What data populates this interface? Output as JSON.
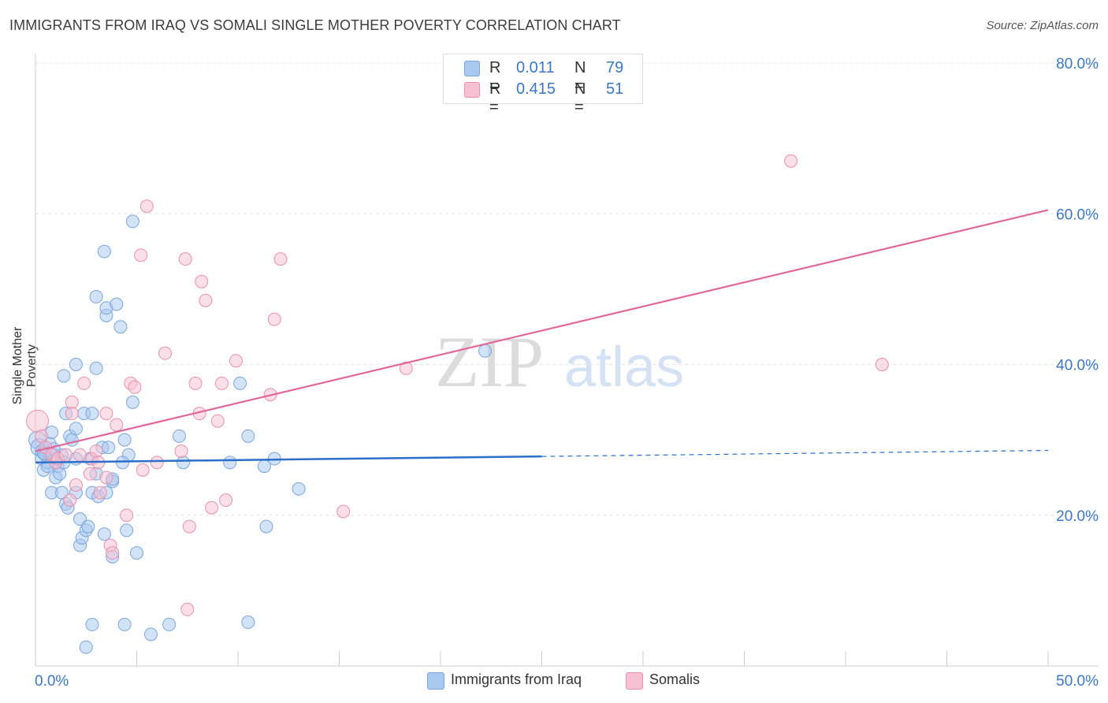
{
  "header": {
    "title": "IMMIGRANTS FROM IRAQ VS SOMALI SINGLE MOTHER POVERTY CORRELATION CHART",
    "source": "Source: ZipAtlas.com"
  },
  "watermark": {
    "zip": "ZIP",
    "atlas": "atlas"
  },
  "legend": {
    "rows": [
      {
        "r_label": "R =",
        "r_value": "0.011",
        "n_label": "N =",
        "n_value": "79",
        "color": "#a8c8f0",
        "border": "#7aa6dc"
      },
      {
        "r_label": "R =",
        "r_value": "0.415",
        "n_label": "N =",
        "n_value": "51",
        "color": "#f7c0d2",
        "border": "#e890ae"
      }
    ]
  },
  "bottom_legend": [
    {
      "label": "Immigrants from Iraq",
      "color": "#a8c8f0",
      "border": "#7aa6dc"
    },
    {
      "label": "Somalis",
      "color": "#f7c0d2",
      "border": "#e890ae"
    }
  ],
  "chart_data": {
    "type": "scatter",
    "title": "IMMIGRANTS FROM IRAQ VS SOMALI SINGLE MOTHER POVERTY CORRELATION CHART",
    "xlabel": "",
    "ylabel": "Single Mother Poverty",
    "xlim": [
      0,
      50
    ],
    "ylim": [
      0,
      80
    ],
    "x_tick_labels": [
      {
        "value": 0,
        "label": "0.0%"
      },
      {
        "value": 50,
        "label": "50.0%"
      }
    ],
    "y_tick_labels": [
      {
        "value": 80,
        "label": "80.0%"
      },
      {
        "value": 60,
        "label": "60.0%"
      },
      {
        "value": 40,
        "label": "40.0%"
      },
      {
        "value": 20,
        "label": "20.0%"
      }
    ],
    "grid": true,
    "legend_position": "top-center",
    "series": [
      {
        "name": "Immigrants from Iraq",
        "color": "#7aa6dc",
        "fill": "#a8c8f0",
        "trend": {
          "x": [
            0,
            25
          ],
          "y": [
            27.0,
            27.8
          ],
          "dashed_to_x": 50,
          "dashed_to_y": 28.6,
          "color": "#2a6fc9"
        },
        "points": [
          [
            0.1,
            30.0
          ],
          [
            0.2,
            29.0
          ],
          [
            0.3,
            28.5
          ],
          [
            0.3,
            27.5
          ],
          [
            0.4,
            26.0
          ],
          [
            0.5,
            28.0
          ],
          [
            0.6,
            27.0
          ],
          [
            0.7,
            29.5
          ],
          [
            0.8,
            31.0
          ],
          [
            0.9,
            28.0
          ],
          [
            1.0,
            25.0
          ],
          [
            1.0,
            27.0
          ],
          [
            1.1,
            26.5
          ],
          [
            1.2,
            25.5
          ],
          [
            1.3,
            28.0
          ],
          [
            1.4,
            27.0
          ],
          [
            0.8,
            23.0
          ],
          [
            1.3,
            23.0
          ],
          [
            1.5,
            21.5
          ],
          [
            1.6,
            21.0
          ],
          [
            1.7,
            30.5
          ],
          [
            1.8,
            30.0
          ],
          [
            2.0,
            31.5
          ],
          [
            2.0,
            27.5
          ],
          [
            2.0,
            23.0
          ],
          [
            1.5,
            33.5
          ],
          [
            1.4,
            38.5
          ],
          [
            2.0,
            40.0
          ],
          [
            2.2,
            19.5
          ],
          [
            2.2,
            16.0
          ],
          [
            2.3,
            17.0
          ],
          [
            2.5,
            18.0
          ],
          [
            2.6,
            18.5
          ],
          [
            2.4,
            33.5
          ],
          [
            2.8,
            33.5
          ],
          [
            2.8,
            23.0
          ],
          [
            3.0,
            25.5
          ],
          [
            3.1,
            22.5
          ],
          [
            3.0,
            39.5
          ],
          [
            3.0,
            49.0
          ],
          [
            3.3,
            29.0
          ],
          [
            3.4,
            17.5
          ],
          [
            3.5,
            23.0
          ],
          [
            3.6,
            29.0
          ],
          [
            3.8,
            24.5
          ],
          [
            3.8,
            14.5
          ],
          [
            3.5,
            46.5
          ],
          [
            3.5,
            47.5
          ],
          [
            4.0,
            48.0
          ],
          [
            4.2,
            45.0
          ],
          [
            4.4,
            30.0
          ],
          [
            4.5,
            18.0
          ],
          [
            4.6,
            28.0
          ],
          [
            4.8,
            35.0
          ],
          [
            5.0,
            15.0
          ],
          [
            4.8,
            59.0
          ],
          [
            3.4,
            55.0
          ],
          [
            4.3,
            27.0
          ],
          [
            2.8,
            5.5
          ],
          [
            4.4,
            5.5
          ],
          [
            5.7,
            4.2
          ],
          [
            6.6,
            5.5
          ],
          [
            2.5,
            2.5
          ],
          [
            10.5,
            5.8
          ],
          [
            7.1,
            30.5
          ],
          [
            7.3,
            27.0
          ],
          [
            9.6,
            27.0
          ],
          [
            10.1,
            37.5
          ],
          [
            10.5,
            30.5
          ],
          [
            11.3,
            26.5
          ],
          [
            11.8,
            27.5
          ],
          [
            11.4,
            18.5
          ],
          [
            13.0,
            23.5
          ],
          [
            22.2,
            41.8
          ],
          [
            0.6,
            26.5
          ],
          [
            2.7,
            27.5
          ],
          [
            3.8,
            24.8
          ],
          [
            0.9,
            28.8
          ],
          [
            0.4,
            28.2
          ]
        ]
      },
      {
        "name": "Somalis",
        "color": "#e890ae",
        "fill": "#f7c0d2",
        "trend": {
          "x": [
            0,
            50
          ],
          "y": [
            28.5,
            60.5
          ],
          "color": "#e0679a"
        },
        "points": [
          [
            0.1,
            32.5
          ],
          [
            0.3,
            30.5
          ],
          [
            0.5,
            29.0
          ],
          [
            0.8,
            28.0
          ],
          [
            1.0,
            27.0
          ],
          [
            1.1,
            27.5
          ],
          [
            1.5,
            28.0
          ],
          [
            1.7,
            22.0
          ],
          [
            1.8,
            35.0
          ],
          [
            1.8,
            33.5
          ],
          [
            2.0,
            24.0
          ],
          [
            2.2,
            28.0
          ],
          [
            2.4,
            37.5
          ],
          [
            2.7,
            25.5
          ],
          [
            2.8,
            27.5
          ],
          [
            3.0,
            28.5
          ],
          [
            3.1,
            27.0
          ],
          [
            3.2,
            23.0
          ],
          [
            3.5,
            33.5
          ],
          [
            3.5,
            25.0
          ],
          [
            3.7,
            16.0
          ],
          [
            3.8,
            15.0
          ],
          [
            4.0,
            32.0
          ],
          [
            4.5,
            20.0
          ],
          [
            4.7,
            37.5
          ],
          [
            4.9,
            37.0
          ],
          [
            5.3,
            26.0
          ],
          [
            5.5,
            61.0
          ],
          [
            5.2,
            54.5
          ],
          [
            6.0,
            27.0
          ],
          [
            6.4,
            41.5
          ],
          [
            7.2,
            28.5
          ],
          [
            7.4,
            54.0
          ],
          [
            7.5,
            7.5
          ],
          [
            7.6,
            18.5
          ],
          [
            7.9,
            37.5
          ],
          [
            8.1,
            33.5
          ],
          [
            8.2,
            51.0
          ],
          [
            8.4,
            48.5
          ],
          [
            8.7,
            21.0
          ],
          [
            9.0,
            32.5
          ],
          [
            9.2,
            37.5
          ],
          [
            9.4,
            22.0
          ],
          [
            9.9,
            40.5
          ],
          [
            11.6,
            36.0
          ],
          [
            11.8,
            46.0
          ],
          [
            12.1,
            54.0
          ],
          [
            15.2,
            20.5
          ],
          [
            18.3,
            39.5
          ],
          [
            37.3,
            67.0
          ],
          [
            41.8,
            40.0
          ]
        ]
      }
    ]
  }
}
